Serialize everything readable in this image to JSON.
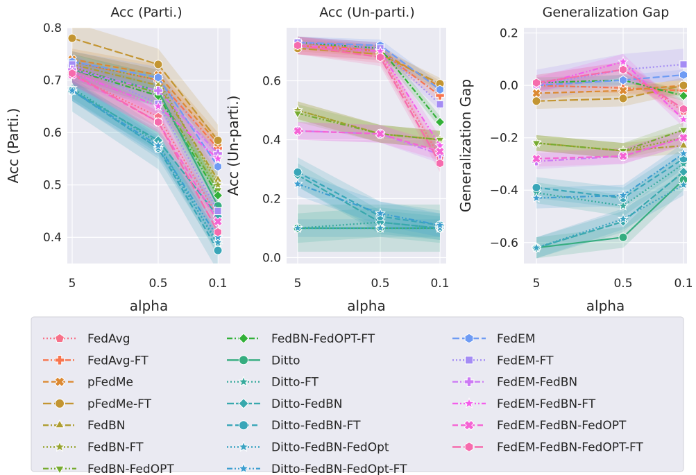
{
  "chart_data": [
    {
      "type": "line",
      "title": "Acc (Parti.)",
      "xlabel": "alpha",
      "ylabel": "Acc (Parti.)",
      "x": [
        "5",
        "0.5",
        "0.1"
      ],
      "ylim": [
        0.35,
        0.8
      ],
      "yticks": [
        0.4,
        0.5,
        0.6,
        0.7,
        0.8
      ],
      "grid": true,
      "series": [
        {
          "name": "FedAvg",
          "values": [
            0.71,
            0.63,
            0.44
          ],
          "band": 0.02
        },
        {
          "name": "FedAvg-FT",
          "values": [
            0.735,
            0.7,
            0.57
          ],
          "band": 0.02
        },
        {
          "name": "pFedMe",
          "values": [
            0.74,
            0.71,
            0.58
          ],
          "band": 0.02
        },
        {
          "name": "pFedMe-FT",
          "values": [
            0.78,
            0.73,
            0.585
          ],
          "band": 0.03
        },
        {
          "name": "FedBN",
          "values": [
            0.73,
            0.69,
            0.51
          ],
          "band": 0.02
        },
        {
          "name": "FedBN-FT",
          "values": [
            0.735,
            0.7,
            0.5
          ],
          "band": 0.02
        },
        {
          "name": "FedBN-FedOPT",
          "values": [
            0.725,
            0.675,
            0.49
          ],
          "band": 0.02
        },
        {
          "name": "FedBN-FedOPT-FT",
          "values": [
            0.72,
            0.67,
            0.48
          ],
          "band": 0.02
        },
        {
          "name": "Ditto",
          "values": [
            0.72,
            0.68,
            0.46
          ],
          "band": 0.03
        },
        {
          "name": "Ditto-FT",
          "values": [
            0.685,
            0.58,
            0.385
          ],
          "band": 0.02
        },
        {
          "name": "Ditto-FedBN",
          "values": [
            0.68,
            0.585,
            0.44
          ],
          "band": 0.02
        },
        {
          "name": "Ditto-FedBN-FT",
          "values": [
            0.68,
            0.57,
            0.375
          ],
          "band": 0.04
        },
        {
          "name": "Ditto-FedBN-FedOpt",
          "values": [
            0.68,
            0.57,
            0.39
          ],
          "band": 0.02
        },
        {
          "name": "Ditto-FedBN-FedOpt-FT",
          "values": [
            0.68,
            0.575,
            0.4
          ],
          "band": 0.02
        },
        {
          "name": "FedEM",
          "values": [
            0.735,
            0.705,
            0.535
          ],
          "band": 0.02
        },
        {
          "name": "FedEM-FT",
          "values": [
            0.73,
            0.655,
            0.45
          ],
          "band": 0.02
        },
        {
          "name": "FedEM-FedBN",
          "values": [
            0.72,
            0.68,
            0.56
          ],
          "band": 0.02
        },
        {
          "name": "FedEM-FedBN-FT",
          "values": [
            0.715,
            0.65,
            0.55
          ],
          "band": 0.02
        },
        {
          "name": "FedEM-FedBN-FedOPT",
          "values": [
            0.71,
            0.62,
            0.43
          ],
          "band": 0.02
        },
        {
          "name": "FedEM-FedBN-FedOPT-FT",
          "values": [
            0.713,
            0.62,
            0.41
          ],
          "band": 0.02
        }
      ]
    },
    {
      "type": "line",
      "title": "Acc (Un-parti.)",
      "xlabel": "alpha",
      "ylabel": "Acc (Un-parti.)",
      "x": [
        "5",
        "0.5",
        "0.1"
      ],
      "ylim": [
        -0.02,
        0.78
      ],
      "yticks": [
        0.0,
        0.2,
        0.4,
        0.6
      ],
      "grid": true,
      "series": [
        {
          "name": "FedAvg",
          "values": [
            0.72,
            0.69,
            0.34
          ],
          "band": 0.03
        },
        {
          "name": "FedAvg-FT",
          "values": [
            0.73,
            0.7,
            0.55
          ],
          "band": 0.02
        },
        {
          "name": "pFedMe",
          "values": [
            0.72,
            0.7,
            0.58
          ],
          "band": 0.02
        },
        {
          "name": "pFedMe-FT",
          "values": [
            0.71,
            0.69,
            0.59
          ],
          "band": 0.02
        },
        {
          "name": "FedBN",
          "values": [
            0.5,
            0.42,
            0.4
          ],
          "band": 0.03
        },
        {
          "name": "FedBN-FT",
          "values": [
            0.5,
            0.42,
            0.4
          ],
          "band": 0.03
        },
        {
          "name": "FedBN-FedOPT",
          "values": [
            0.49,
            0.42,
            0.4
          ],
          "band": 0.03
        },
        {
          "name": "FedBN-FedOPT-FT",
          "values": [
            0.73,
            0.71,
            0.46
          ],
          "band": 0.02
        },
        {
          "name": "Ditto",
          "values": [
            0.1,
            0.1,
            0.1
          ],
          "band": 0.08
        },
        {
          "name": "Ditto-FT",
          "values": [
            0.1,
            0.12,
            0.1
          ],
          "band": 0.05
        },
        {
          "name": "Ditto-FedBN",
          "values": [
            0.28,
            0.12,
            0.1
          ],
          "band": 0.04
        },
        {
          "name": "Ditto-FedBN-FT",
          "values": [
            0.29,
            0.14,
            0.11
          ],
          "band": 0.05
        },
        {
          "name": "Ditto-FedBN-FedOpt",
          "values": [
            0.1,
            0.1,
            0.1
          ],
          "band": 0.03
        },
        {
          "name": "Ditto-FedBN-FedOpt-FT",
          "values": [
            0.25,
            0.15,
            0.11
          ],
          "band": 0.04
        },
        {
          "name": "FedEM",
          "values": [
            0.73,
            0.72,
            0.57
          ],
          "band": 0.02
        },
        {
          "name": "FedEM-FT",
          "values": [
            0.73,
            0.71,
            0.52
          ],
          "band": 0.02
        },
        {
          "name": "FedEM-FedBN",
          "values": [
            0.43,
            0.42,
            0.35
          ],
          "band": 0.03
        },
        {
          "name": "FedEM-FedBN-FT",
          "values": [
            0.72,
            0.7,
            0.38
          ],
          "band": 0.03
        },
        {
          "name": "FedEM-FedBN-FedOPT",
          "values": [
            0.43,
            0.42,
            0.36
          ],
          "band": 0.03
        },
        {
          "name": "FedEM-FedBN-FedOPT-FT",
          "values": [
            0.72,
            0.68,
            0.32
          ],
          "band": 0.03
        }
      ]
    },
    {
      "type": "line",
      "title": "Generalization Gap",
      "xlabel": "alpha",
      "ylabel": "Generalization Gap",
      "x": [
        "5",
        "0.5",
        "0.1"
      ],
      "ylim": [
        -0.68,
        0.22
      ],
      "yticks": [
        -0.6,
        -0.4,
        -0.2,
        0.0,
        0.2
      ],
      "grid": true,
      "series": [
        {
          "name": "FedAvg",
          "values": [
            0.01,
            0.06,
            -0.1
          ],
          "band": 0.03
        },
        {
          "name": "FedAvg-FT",
          "values": [
            0.0,
            -0.01,
            -0.02
          ],
          "band": 0.02
        },
        {
          "name": "pFedMe",
          "values": [
            -0.03,
            -0.02,
            0.0
          ],
          "band": 0.02
        },
        {
          "name": "pFedMe-FT",
          "values": [
            -0.06,
            -0.05,
            0.0
          ],
          "band": 0.03
        },
        {
          "name": "FedBN",
          "values": [
            -0.22,
            -0.25,
            -0.23
          ],
          "band": 0.03
        },
        {
          "name": "FedBN-FT",
          "values": [
            -0.22,
            -0.25,
            -0.2
          ],
          "band": 0.03
        },
        {
          "name": "FedBN-FedOPT",
          "values": [
            -0.22,
            -0.25,
            -0.17
          ],
          "band": 0.03
        },
        {
          "name": "FedBN-FedOPT-FT",
          "values": [
            0.01,
            0.02,
            -0.04
          ],
          "band": 0.02
        },
        {
          "name": "Ditto",
          "values": [
            -0.62,
            -0.58,
            -0.36
          ],
          "band": 0.04
        },
        {
          "name": "Ditto-FT",
          "values": [
            -0.41,
            -0.46,
            -0.3
          ],
          "band": 0.04
        },
        {
          "name": "Ditto-FedBN",
          "values": [
            -0.62,
            -0.52,
            -0.33
          ],
          "band": 0.04
        },
        {
          "name": "Ditto-FedBN-FT",
          "values": [
            -0.39,
            -0.43,
            -0.28
          ],
          "band": 0.04
        },
        {
          "name": "Ditto-FedBN-FedOpt",
          "values": [
            -0.62,
            -0.51,
            -0.38
          ],
          "band": 0.04
        },
        {
          "name": "Ditto-FedBN-FedOpt-FT",
          "values": [
            -0.43,
            -0.42,
            -0.26
          ],
          "band": 0.04
        },
        {
          "name": "FedEM",
          "values": [
            0.0,
            0.02,
            0.04
          ],
          "band": 0.02
        },
        {
          "name": "FedEM-FT",
          "values": [
            0.0,
            0.06,
            0.08
          ],
          "band": 0.06
        },
        {
          "name": "FedEM-FedBN",
          "values": [
            -0.29,
            -0.27,
            -0.2
          ],
          "band": 0.03
        },
        {
          "name": "FedEM-FedBN-FT",
          "values": [
            0.0,
            0.09,
            -0.13
          ],
          "band": 0.03
        },
        {
          "name": "FedEM-FedBN-FedOPT",
          "values": [
            -0.28,
            -0.27,
            -0.2
          ],
          "band": 0.03
        },
        {
          "name": "FedEM-FedBN-FedOPT-FT",
          "values": [
            0.01,
            0.06,
            -0.09
          ],
          "band": 0.03
        }
      ]
    }
  ],
  "styles": [
    {
      "color": "#f77189",
      "dash": "2,3",
      "marker": "pentagon"
    },
    {
      "color": "#f7754f",
      "dash": "8,3,2,3",
      "marker": "plus"
    },
    {
      "color": "#dc8932",
      "dash": "8,4",
      "marker": "x"
    },
    {
      "color": "#c39532",
      "dash": "12,4",
      "marker": "circle"
    },
    {
      "color": "#ae9d31",
      "dash": "8,3,2,3",
      "marker": "triangle"
    },
    {
      "color": "#97a431",
      "dash": "2,3",
      "marker": "star"
    },
    {
      "color": "#77ab31",
      "dash": "8,3,2,3,2,3",
      "marker": "triangle-down"
    },
    {
      "color": "#33b039",
      "dash": "8,3,2,3",
      "marker": "diamond"
    },
    {
      "color": "#36ad80",
      "dash": "",
      "marker": "circle"
    },
    {
      "color": "#37aa9d",
      "dash": "2,3",
      "marker": "star"
    },
    {
      "color": "#38a8ad",
      "dash": "10,3",
      "marker": "diamond"
    },
    {
      "color": "#39a6b8",
      "dash": "8,4",
      "marker": "circle"
    },
    {
      "color": "#3ba3c2",
      "dash": "2,3",
      "marker": "star"
    },
    {
      "color": "#3d9ed0",
      "dash": "8,3,2,3,2,3",
      "marker": "star"
    },
    {
      "color": "#6e9bf4",
      "dash": "10,4",
      "marker": "hexagon"
    },
    {
      "color": "#a48cf4",
      "dash": "2,3",
      "marker": "square"
    },
    {
      "color": "#cc7af4",
      "dash": "8,3,2,3",
      "marker": "plus"
    },
    {
      "color": "#f45deb",
      "dash": "8,3,2,3,2,3",
      "marker": "star"
    },
    {
      "color": "#f564d4",
      "dash": "8,4",
      "marker": "x"
    },
    {
      "color": "#f66bad",
      "dash": "12,4",
      "marker": "hexagon"
    }
  ],
  "legend": {
    "placement": "bottom",
    "items": [
      "FedAvg",
      "FedAvg-FT",
      "pFedMe",
      "pFedMe-FT",
      "FedBN",
      "FedBN-FT",
      "FedBN-FedOPT",
      "FedBN-FedOPT-FT",
      "Ditto",
      "Ditto-FT",
      "Ditto-FedBN",
      "Ditto-FedBN-FT",
      "Ditto-FedBN-FedOpt",
      "Ditto-FedBN-FedOpt-FT",
      "FedEM",
      "FedEM-FT",
      "FedEM-FedBN",
      "FedEM-FedBN-FT",
      "FedEM-FedBN-FedOPT",
      "FedEM-FedBN-FedOPT-FT"
    ]
  },
  "colors": {
    "plot_bg": "#eaeaf2",
    "grid": "#ffffff",
    "legend_bg": "#eaeaf2"
  }
}
